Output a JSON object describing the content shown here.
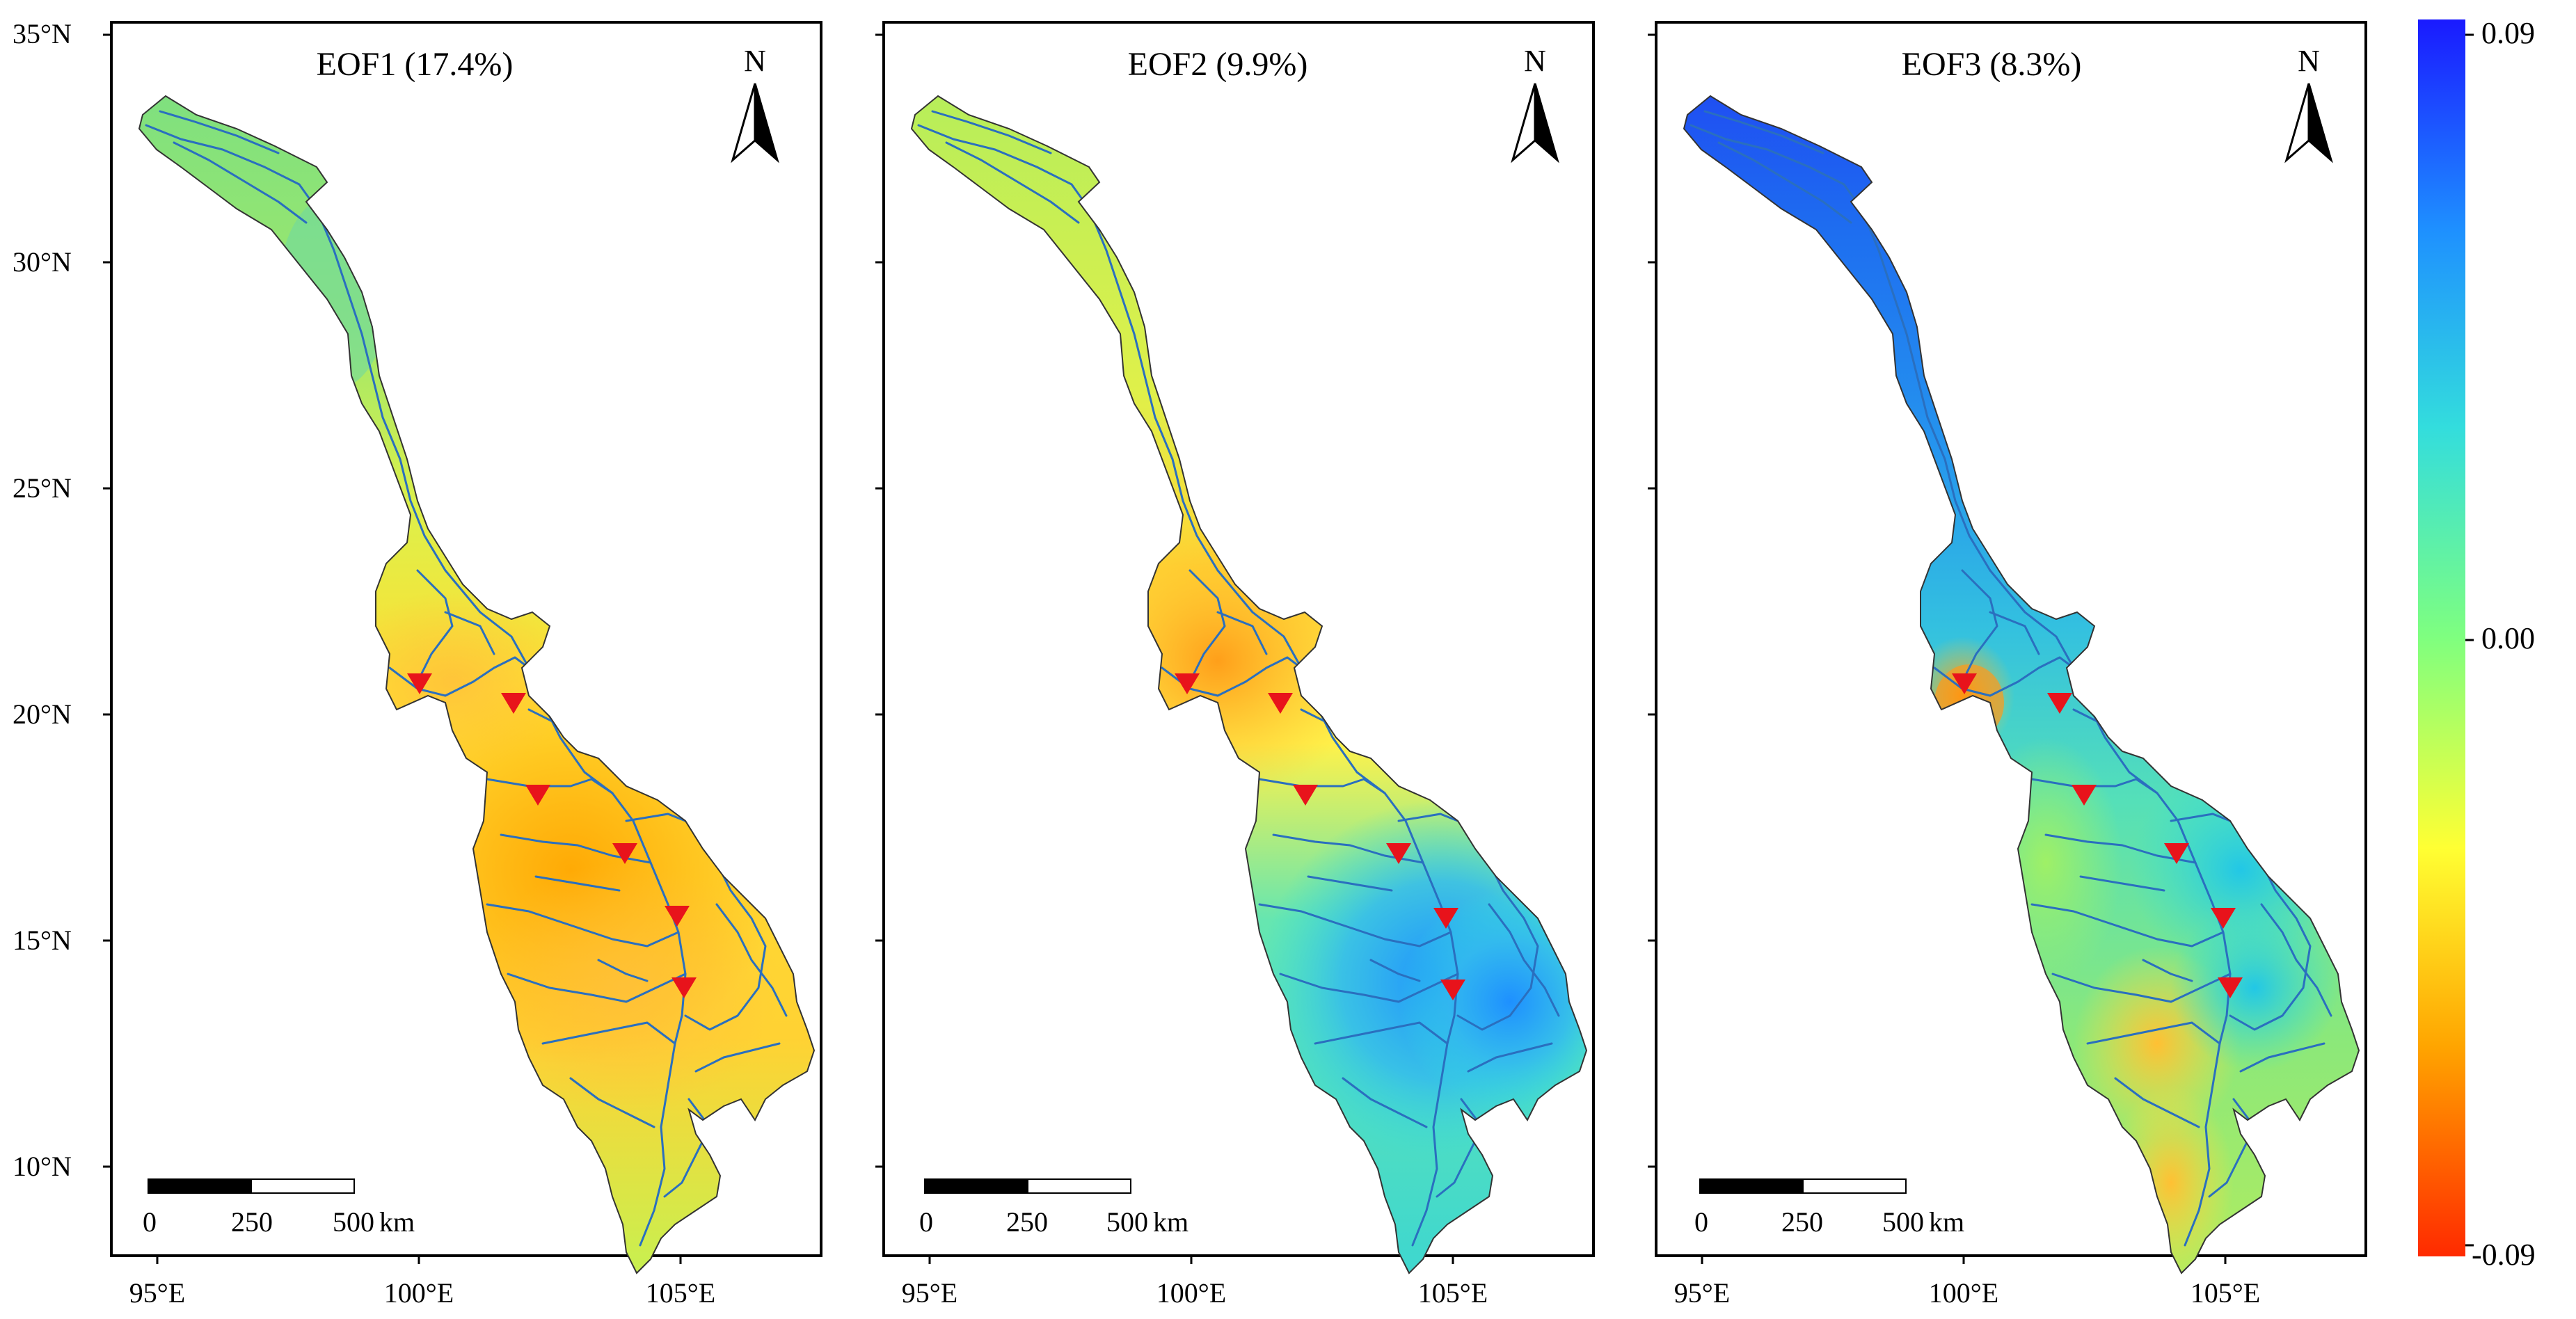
{
  "axes": {
    "lat_labels": [
      "35°N",
      "30°N",
      "25°N",
      "20°N",
      "15°N",
      "10°N"
    ],
    "lon_labels": [
      "95°E",
      "100°E",
      "105°E"
    ]
  },
  "panels": [
    {
      "title": "EOF1 (17.4%)",
      "north": "N",
      "scale": {
        "ticks": [
          "0",
          "250",
          "500"
        ],
        "unit": "km"
      },
      "pattern": "eof1"
    },
    {
      "title": "EOF2 (9.9%)",
      "north": "N",
      "scale": {
        "ticks": [
          "0",
          "250",
          "500"
        ],
        "unit": "km"
      },
      "pattern": "eof2"
    },
    {
      "title": "EOF3 (8.3%)",
      "north": "N",
      "scale": {
        "ticks": [
          "0",
          "250",
          "500"
        ],
        "unit": "km"
      },
      "pattern": "eof3"
    }
  ],
  "colorbar": {
    "max_label": "0.09",
    "mid_label": "0.00",
    "min_label": "-0.09",
    "stops": [
      "#1a1aff",
      "#1e90ff",
      "#33dddd",
      "#7fff7f",
      "#ffff33",
      "#ffa500",
      "#ff2a00"
    ]
  },
  "station_marker_color": "#e8131b",
  "river_color": "#2a6fbf"
}
